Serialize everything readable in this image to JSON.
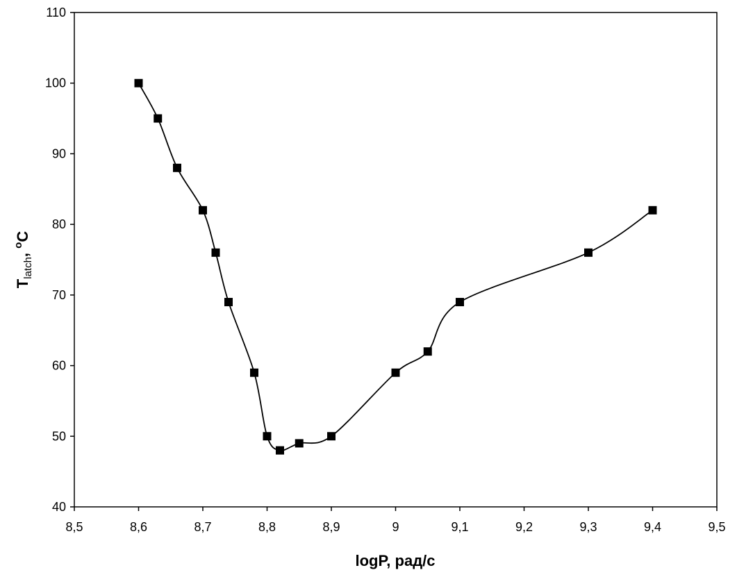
{
  "chart_data": {
    "type": "line",
    "xlabel": "logP, рад/с",
    "ylabel": {
      "main": "T",
      "subscript": "latch",
      "separator": ", ",
      "superscript": "o",
      "unit": "C"
    },
    "xlim": [
      8.5,
      9.5
    ],
    "ylim": [
      40,
      110
    ],
    "x_ticks": [
      "8,5",
      "8,6",
      "8,7",
      "8,8",
      "8,9",
      "9",
      "9,1",
      "9,2",
      "9,3",
      "9,4",
      "9,5"
    ],
    "y_ticks": [
      "40",
      "50",
      "60",
      "70",
      "80",
      "90",
      "100",
      "110"
    ],
    "grid": false,
    "legend": "none",
    "series": [
      {
        "marker": "square",
        "color": "#000000",
        "x": [
          8.6,
          8.63,
          8.66,
          8.7,
          8.72,
          8.74,
          8.78,
          8.8,
          8.82,
          8.85,
          8.9,
          9.0,
          9.05,
          9.1,
          9.3,
          9.4
        ],
        "y": [
          100,
          95,
          88,
          82,
          76,
          69,
          59,
          50,
          48,
          49,
          50,
          59,
          62,
          69,
          76,
          82
        ]
      }
    ]
  }
}
